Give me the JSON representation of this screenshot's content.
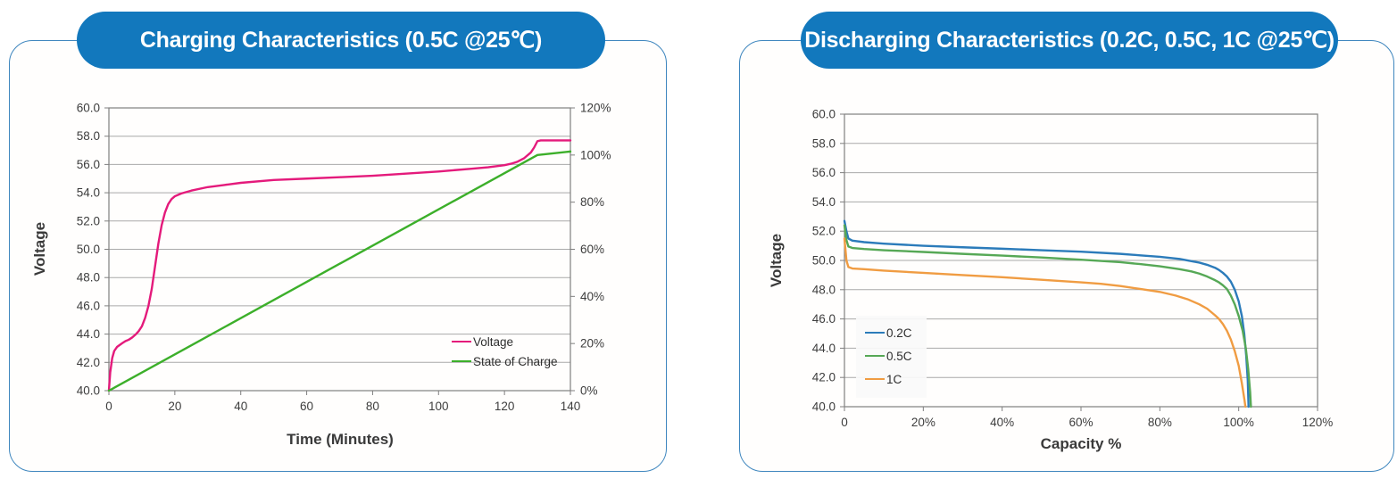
{
  "chart_data": [
    {
      "type": "line",
      "title": "Charging Characteristics  (0.5C @25℃)",
      "xlabel": "Time (Minutes)",
      "ylabel": "Voltage",
      "xlim": [
        0,
        140
      ],
      "xtick_values": [
        0,
        20,
        40,
        60,
        80,
        100,
        120,
        140
      ],
      "xtick_labels": [
        "0",
        "20",
        "40",
        "60",
        "80",
        "100",
        "120",
        "140"
      ],
      "ylim": [
        40,
        60
      ],
      "ytick_values": [
        40,
        42,
        44,
        46,
        48,
        50,
        52,
        54,
        56,
        58,
        60
      ],
      "ytick_labels": [
        "40.0",
        "42.0",
        "44.0",
        "46.0",
        "48.0",
        "50.0",
        "52.0",
        "54.0",
        "56.0",
        "58.0",
        "60.0"
      ],
      "y2lim": [
        0,
        120
      ],
      "y2tick_values": [
        0,
        20,
        40,
        60,
        80,
        100,
        120
      ],
      "y2tick_labels": [
        "0%",
        "20%",
        "40%",
        "60%",
        "80%",
        "100%",
        "120%"
      ],
      "grid": "horizontal",
      "legend_position": "inside bottom-right",
      "series": [
        {
          "name": "Voltage",
          "color": "#E41A7B",
          "y_axis": "left",
          "points": [
            [
              0,
              40.0
            ],
            [
              0.4,
              41.3
            ],
            [
              1,
              42.3
            ],
            [
              1.6,
              42.8
            ],
            [
              2.5,
              43.1
            ],
            [
              4,
              43.35
            ],
            [
              5,
              43.5
            ],
            [
              6,
              43.6
            ],
            [
              7,
              43.75
            ],
            [
              8,
              43.95
            ],
            [
              9,
              44.2
            ],
            [
              10,
              44.55
            ],
            [
              11,
              45.15
            ],
            [
              12,
              46.0
            ],
            [
              13,
              47.2
            ],
            [
              14,
              48.8
            ],
            [
              15,
              50.4
            ],
            [
              16,
              51.7
            ],
            [
              17,
              52.6
            ],
            [
              18,
              53.2
            ],
            [
              19,
              53.55
            ],
            [
              20,
              53.75
            ],
            [
              22,
              53.95
            ],
            [
              25,
              54.15
            ],
            [
              30,
              54.4
            ],
            [
              35,
              54.55
            ],
            [
              40,
              54.7
            ],
            [
              50,
              54.9
            ],
            [
              60,
              55.0
            ],
            [
              70,
              55.1
            ],
            [
              80,
              55.2
            ],
            [
              90,
              55.35
            ],
            [
              100,
              55.5
            ],
            [
              110,
              55.7
            ],
            [
              115,
              55.8
            ],
            [
              120,
              55.95
            ],
            [
              122,
              56.05
            ],
            [
              124,
              56.2
            ],
            [
              126,
              56.45
            ],
            [
              128,
              56.85
            ],
            [
              129,
              57.2
            ],
            [
              130,
              57.65
            ],
            [
              131,
              57.7
            ],
            [
              140,
              57.7
            ]
          ]
        },
        {
          "name": "State of Charge",
          "color": "#3CAF2A",
          "y_axis": "right",
          "points": [
            [
              0,
              0
            ],
            [
              130,
              100
            ],
            [
              140,
              101.5
            ]
          ]
        }
      ]
    },
    {
      "type": "line",
      "title": "Discharging Characteristics  (0.2C, 0.5C, 1C @25℃)",
      "xlabel": "Capacity %",
      "ylabel": "Voltage",
      "xlim": [
        0,
        120
      ],
      "xtick_values": [
        0,
        20,
        40,
        60,
        80,
        100,
        120
      ],
      "xtick_labels": [
        "0",
        "20%",
        "40%",
        "60%",
        "80%",
        "100%",
        "120%"
      ],
      "ylim": [
        40,
        60
      ],
      "ytick_values": [
        40,
        42,
        44,
        46,
        48,
        50,
        52,
        54,
        56,
        58,
        60
      ],
      "ytick_labels": [
        "40.0",
        "42.0",
        "44.0",
        "46.0",
        "48.0",
        "50.0",
        "52.0",
        "54.0",
        "56.0",
        "58.0",
        "60.0"
      ],
      "grid": "horizontal",
      "legend_position": "inside left",
      "series": [
        {
          "name": "0.2C",
          "color": "#2B7BBA",
          "y_axis": "left",
          "points": [
            [
              0,
              52.7
            ],
            [
              0.5,
              52.0
            ],
            [
              1,
              51.5
            ],
            [
              2,
              51.35
            ],
            [
              5,
              51.25
            ],
            [
              10,
              51.15
            ],
            [
              20,
              51.0
            ],
            [
              30,
              50.9
            ],
            [
              40,
              50.8
            ],
            [
              50,
              50.7
            ],
            [
              60,
              50.6
            ],
            [
              70,
              50.45
            ],
            [
              75,
              50.35
            ],
            [
              80,
              50.25
            ],
            [
              85,
              50.1
            ],
            [
              88,
              49.95
            ],
            [
              90,
              49.85
            ],
            [
              92,
              49.7
            ],
            [
              94,
              49.5
            ],
            [
              95,
              49.35
            ],
            [
              96,
              49.15
            ],
            [
              97,
              48.9
            ],
            [
              98,
              48.55
            ],
            [
              99,
              48.0
            ],
            [
              100,
              47.2
            ],
            [
              100.8,
              46.2
            ],
            [
              101.4,
              45.0
            ],
            [
              101.9,
              43.5
            ],
            [
              102.3,
              41.8
            ],
            [
              102.5,
              40.0
            ]
          ]
        },
        {
          "name": "0.5C",
          "color": "#56A856",
          "y_axis": "left",
          "points": [
            [
              0,
              52.4
            ],
            [
              0.5,
              51.4
            ],
            [
              1,
              50.95
            ],
            [
              2,
              50.85
            ],
            [
              5,
              50.78
            ],
            [
              10,
              50.7
            ],
            [
              20,
              50.58
            ],
            [
              30,
              50.45
            ],
            [
              40,
              50.33
            ],
            [
              50,
              50.2
            ],
            [
              60,
              50.05
            ],
            [
              70,
              49.88
            ],
            [
              75,
              49.75
            ],
            [
              80,
              49.6
            ],
            [
              85,
              49.4
            ],
            [
              88,
              49.25
            ],
            [
              90,
              49.1
            ],
            [
              92,
              48.9
            ],
            [
              94,
              48.65
            ],
            [
              95,
              48.5
            ],
            [
              96,
              48.3
            ],
            [
              97,
              48.05
            ],
            [
              98,
              47.6
            ],
            [
              99,
              47.0
            ],
            [
              100,
              46.2
            ],
            [
              101,
              45.2
            ],
            [
              101.8,
              44.0
            ],
            [
              102.4,
              42.6
            ],
            [
              102.9,
              41.0
            ],
            [
              103.1,
              40.0
            ]
          ]
        },
        {
          "name": "1C",
          "color": "#F09C42",
          "y_axis": "left",
          "points": [
            [
              0,
              51.5
            ],
            [
              0.5,
              50.0
            ],
            [
              1,
              49.55
            ],
            [
              2,
              49.45
            ],
            [
              5,
              49.4
            ],
            [
              10,
              49.3
            ],
            [
              20,
              49.15
            ],
            [
              30,
              49.0
            ],
            [
              40,
              48.85
            ],
            [
              50,
              48.68
            ],
            [
              60,
              48.5
            ],
            [
              65,
              48.4
            ],
            [
              70,
              48.25
            ],
            [
              75,
              48.05
            ],
            [
              80,
              47.85
            ],
            [
              84,
              47.6
            ],
            [
              87,
              47.35
            ],
            [
              90,
              47.0
            ],
            [
              92,
              46.7
            ],
            [
              94,
              46.25
            ],
            [
              95,
              46.0
            ],
            [
              96,
              45.65
            ],
            [
              97,
              45.2
            ],
            [
              98,
              44.6
            ],
            [
              99,
              43.8
            ],
            [
              100,
              42.8
            ],
            [
              100.8,
              41.6
            ],
            [
              101.5,
              40.4
            ],
            [
              101.7,
              40.0
            ]
          ]
        }
      ]
    }
  ],
  "colors": {
    "pill_blue": "#1278BD",
    "card_border_blue": "#3E86BE",
    "gridline_gray": "#A9A9A9",
    "plot_border_gray": "#7F7F7F",
    "voltage_pink": "#E41A7B",
    "soc_green": "#3CAF2A",
    "c02_blue": "#2B7BBA",
    "c05_green": "#56A856",
    "c1_orange": "#F09C42"
  }
}
